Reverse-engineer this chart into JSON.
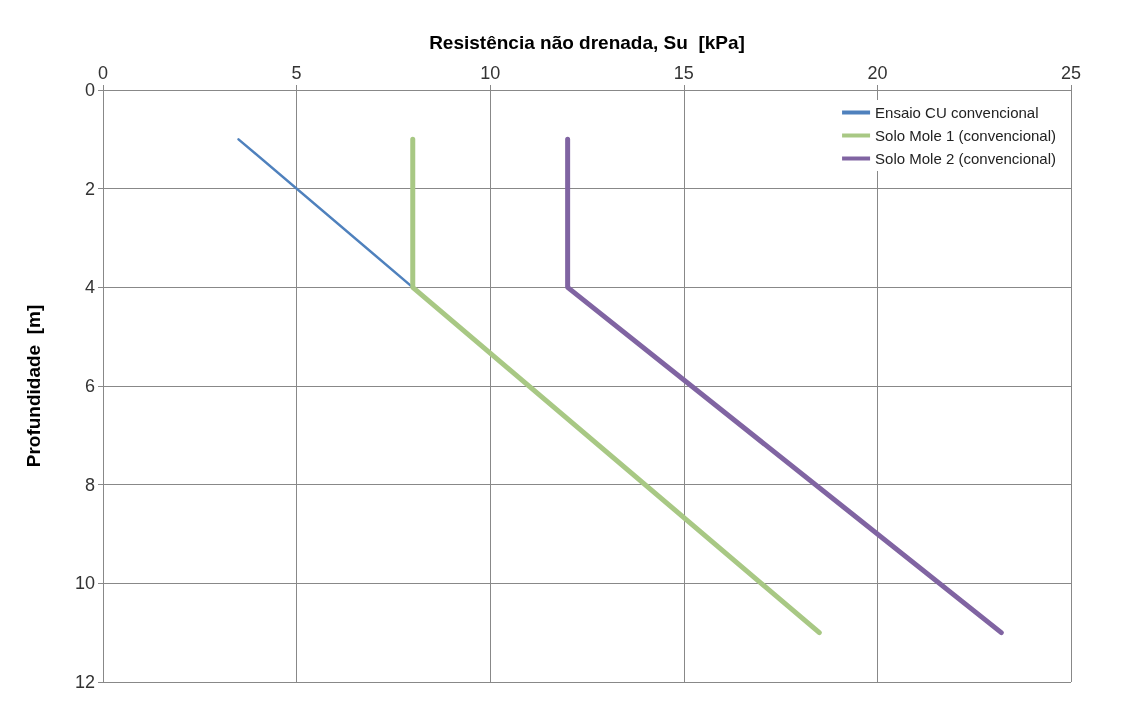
{
  "chart_data": {
    "type": "line",
    "xlabel": "Resistência não drenada, Su  [kPa]",
    "ylabel": "Profundidade  [m]",
    "xlim": [
      0,
      25
    ],
    "xticks": [
      0,
      5,
      10,
      15,
      20,
      25
    ],
    "ylim": [
      12,
      0
    ],
    "yticks": [
      0,
      2,
      4,
      6,
      8,
      10,
      12
    ],
    "grid": true,
    "legend": "top right",
    "marker": "none",
    "line_style": "solid",
    "series": [
      {
        "name": "Ensaio CU convencional",
        "color": "#4f81bd",
        "x": [
          3.5,
          8
        ],
        "values": [
          1,
          4
        ]
      },
      {
        "name": "Solo Mole 1 (convencional)",
        "color": "#a8c884",
        "x": [
          8,
          8,
          18.5
        ],
        "values": [
          1,
          4,
          11
        ]
      },
      {
        "name": "Solo Mole 2 (convencional)",
        "color": "#8064a2",
        "x": [
          12,
          12,
          23.2
        ],
        "values": [
          1,
          4,
          11
        ]
      }
    ]
  }
}
